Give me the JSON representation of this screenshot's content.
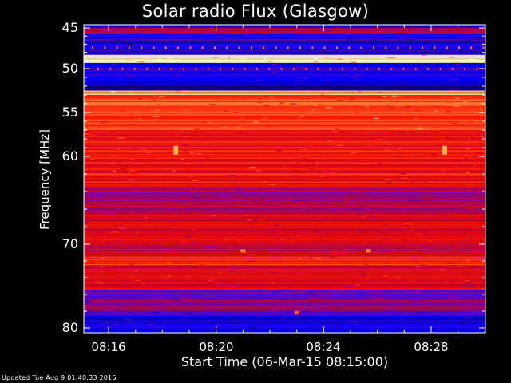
{
  "header": {
    "title": "Solar radio Flux (Glasgow)"
  },
  "footer": {
    "updated": "Updated Tue Aug  9 01:40:33 2016"
  },
  "chart_data": {
    "type": "heatmap",
    "title": "Solar radio Flux (Glasgow)",
    "xlabel": "Start Time (06-Mar-15 08:15:00)",
    "ylabel": "Frequency [MHz]",
    "y_ticks": [
      "45",
      "50",
      "55",
      "60",
      "70",
      "80"
    ],
    "x_ticks": [
      "08:16",
      "08:20",
      "08:24",
      "08:28"
    ],
    "x_range": [
      "08:15:00",
      "08:30:00"
    ],
    "y_range": [
      45,
      80
    ],
    "y_scale": "non-linear",
    "colormap": "blue-red-yellow-white",
    "grid": false,
    "bands": [
      {
        "f0": 45.0,
        "f1": 45.7,
        "level": 0.35
      },
      {
        "f0": 45.7,
        "f1": 48.3,
        "level": 0.12
      },
      {
        "f0": 48.3,
        "f1": 49.3,
        "level": 0.95
      },
      {
        "f0": 49.3,
        "f1": 51.5,
        "level": 0.15
      },
      {
        "f0": 51.5,
        "f1": 52.5,
        "level": 0.05
      },
      {
        "f0": 52.5,
        "f1": 53.0,
        "level": 0.85
      },
      {
        "f0": 53.0,
        "f1": 57.0,
        "level": 0.68
      },
      {
        "f0": 57.0,
        "f1": 63.5,
        "level": 0.58
      },
      {
        "f0": 63.5,
        "f1": 66.5,
        "level": 0.38
      },
      {
        "f0": 66.5,
        "f1": 70.0,
        "level": 0.5
      },
      {
        "f0": 70.0,
        "f1": 71.5,
        "level": 0.42
      },
      {
        "f0": 71.5,
        "f1": 72.5,
        "level": 0.62
      },
      {
        "f0": 72.5,
        "f1": 75.5,
        "level": 0.52
      },
      {
        "f0": 75.5,
        "f1": 78.0,
        "level": 0.3
      },
      {
        "f0": 78.0,
        "f1": 80.0,
        "level": 0.15
      }
    ],
    "bursts": [
      {
        "time": "08:18:30",
        "f0": 58.8,
        "f1": 59.8,
        "level": 0.85
      },
      {
        "time": "08:28:30",
        "f0": 58.8,
        "f1": 59.8,
        "level": 0.85
      },
      {
        "time": "08:21:00",
        "f0": 70.6,
        "f1": 71.0,
        "level": 0.8
      },
      {
        "time": "08:25:40",
        "f0": 70.6,
        "f1": 71.0,
        "level": 0.8
      },
      {
        "time": "08:23:00",
        "f0": 78.0,
        "f1": 78.4,
        "level": 0.75
      }
    ]
  }
}
